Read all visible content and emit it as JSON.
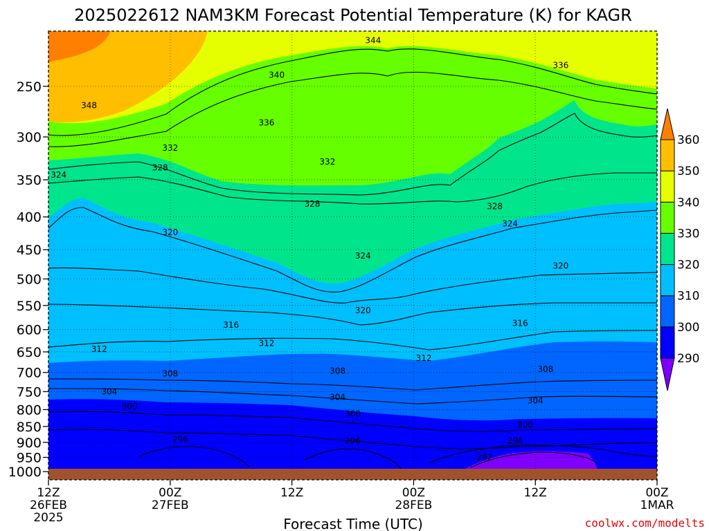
{
  "chart_data": {
    "type": "contour",
    "title": "2025022612 NAM3KM Forecast Potential Temperature (K) for KAGR",
    "xlabel": "Forecast Time (UTC)",
    "ylabel": "",
    "credit": "coolwx.com/modelts",
    "x_ticks": [
      {
        "hours": 0,
        "lines": [
          "12Z",
          "26FEB",
          "2025"
        ]
      },
      {
        "hours": 12,
        "lines": [
          "00Z",
          "27FEB"
        ]
      },
      {
        "hours": 24,
        "lines": [
          "12Z"
        ]
      },
      {
        "hours": 36,
        "lines": [
          "00Z",
          "28FEB"
        ]
      },
      {
        "hours": 48,
        "lines": [
          "12Z"
        ]
      },
      {
        "hours": 60,
        "lines": [
          "00Z",
          "1MAR"
        ]
      }
    ],
    "xlim_hours": [
      0,
      60
    ],
    "y_ticks": [
      250,
      300,
      350,
      400,
      450,
      500,
      550,
      600,
      650,
      700,
      750,
      800,
      850,
      900,
      950,
      1000
    ],
    "y_scale": "log-pressure (inverted)",
    "ylim": [
      1030,
      205
    ],
    "grid": true,
    "colorbar": {
      "levels": [
        290,
        300,
        310,
        320,
        330,
        340,
        350,
        360
      ],
      "colors": [
        "#7f00ff",
        "#0000ff",
        "#0066ff",
        "#00bfff",
        "#00e58c",
        "#66ff00",
        "#e6ff00",
        "#ffbf00",
        "#ff8000"
      ]
    },
    "contour_interval": 4,
    "contour_labels": [
      {
        "hours": 32,
        "p": 212,
        "label": "344"
      },
      {
        "hours": 50.5,
        "p": 232,
        "label": "336"
      },
      {
        "hours": 22.5,
        "p": 240,
        "label": "340"
      },
      {
        "hours": 4,
        "p": 268,
        "label": "348"
      },
      {
        "hours": 21.5,
        "p": 285,
        "label": "336"
      },
      {
        "hours": 12,
        "p": 312,
        "label": "332"
      },
      {
        "hours": 27.5,
        "p": 328,
        "label": "332"
      },
      {
        "hours": 1,
        "p": 344,
        "label": "324"
      },
      {
        "hours": 11,
        "p": 335,
        "label": "328"
      },
      {
        "hours": 26,
        "p": 382,
        "label": "328"
      },
      {
        "hours": 44,
        "p": 385,
        "label": "328"
      },
      {
        "hours": 45.5,
        "p": 410,
        "label": "324"
      },
      {
        "hours": 12,
        "p": 423,
        "label": "320"
      },
      {
        "hours": 31,
        "p": 460,
        "label": "324"
      },
      {
        "hours": 50.5,
        "p": 477,
        "label": "320"
      },
      {
        "hours": 31,
        "p": 560,
        "label": "320"
      },
      {
        "hours": 18,
        "p": 590,
        "label": "316"
      },
      {
        "hours": 46.5,
        "p": 586,
        "label": "316"
      },
      {
        "hours": 5,
        "p": 644,
        "label": "312"
      },
      {
        "hours": 21.5,
        "p": 630,
        "label": "312"
      },
      {
        "hours": 37,
        "p": 665,
        "label": "312"
      },
      {
        "hours": 12,
        "p": 703,
        "label": "308"
      },
      {
        "hours": 28.5,
        "p": 696,
        "label": "308"
      },
      {
        "hours": 49,
        "p": 692,
        "label": "308"
      },
      {
        "hours": 6,
        "p": 750,
        "label": "304"
      },
      {
        "hours": 28.5,
        "p": 765,
        "label": "304"
      },
      {
        "hours": 48,
        "p": 775,
        "label": "304"
      },
      {
        "hours": 8,
        "p": 790,
        "label": "300"
      },
      {
        "hours": 30,
        "p": 812,
        "label": "300"
      },
      {
        "hours": 47,
        "p": 845,
        "label": "300"
      },
      {
        "hours": 13,
        "p": 890,
        "label": "296"
      },
      {
        "hours": 30,
        "p": 895,
        "label": "296"
      },
      {
        "hours": 46,
        "p": 895,
        "label": "296"
      },
      {
        "hours": 43,
        "p": 950,
        "label": "292"
      }
    ]
  }
}
